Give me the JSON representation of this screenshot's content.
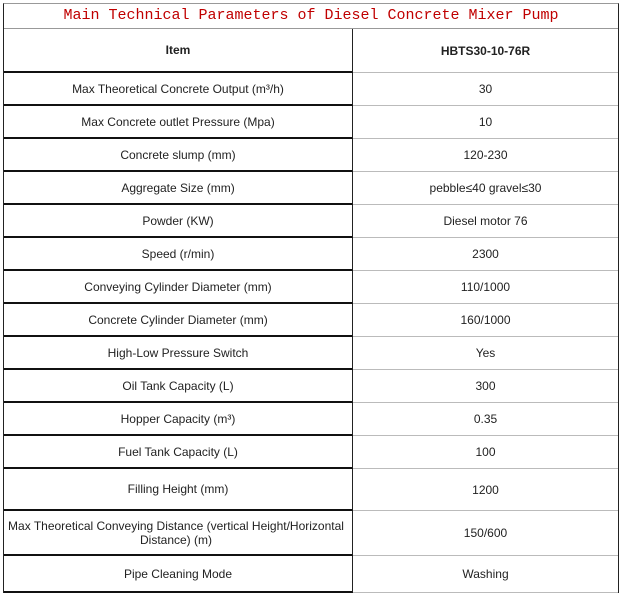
{
  "title": "Main Technical Parameters of Diesel Concrete Mixer Pump",
  "header": {
    "item": "Item",
    "model": "HBTS30-10-76R"
  },
  "rows": [
    {
      "item": "Max Theoretical Concrete Output  (m³/h)",
      "value": "30"
    },
    {
      "item": "Max Concrete outlet Pressure (Mpa)",
      "value": "10"
    },
    {
      "item": "Concrete slump  (mm)",
      "value": "120-230"
    },
    {
      "item": "Aggregate Size  (mm)",
      "value": "pebble≤40  gravel≤30"
    },
    {
      "item": "Powder  (KW)",
      "value": "Diesel motor 76"
    },
    {
      "item": "Speed  (r/min)",
      "value": "2300"
    },
    {
      "item": "Conveying Cylinder Diameter  (mm)",
      "value": "110/1000"
    },
    {
      "item": "Concrete Cylinder Diameter  (mm)",
      "value": "160/1000"
    },
    {
      "item": "High-Low Pressure Switch",
      "value": "Yes"
    },
    {
      "item": "Oil Tank Capacity  (L)",
      "value": "300"
    },
    {
      "item": "Hopper Capacity  (m³)",
      "value": "0.35"
    },
    {
      "item": "Fuel Tank Capacity  (L)",
      "value": "100"
    },
    {
      "item": "Filling Height  (mm)",
      "value": "1200"
    },
    {
      "item": "Max Theoretical Conveying Distance (vertical Height/Horizontal Distance)  (m)",
      "value": "150/600"
    },
    {
      "item": "Pipe Cleaning Mode",
      "value": "Washing"
    }
  ]
}
